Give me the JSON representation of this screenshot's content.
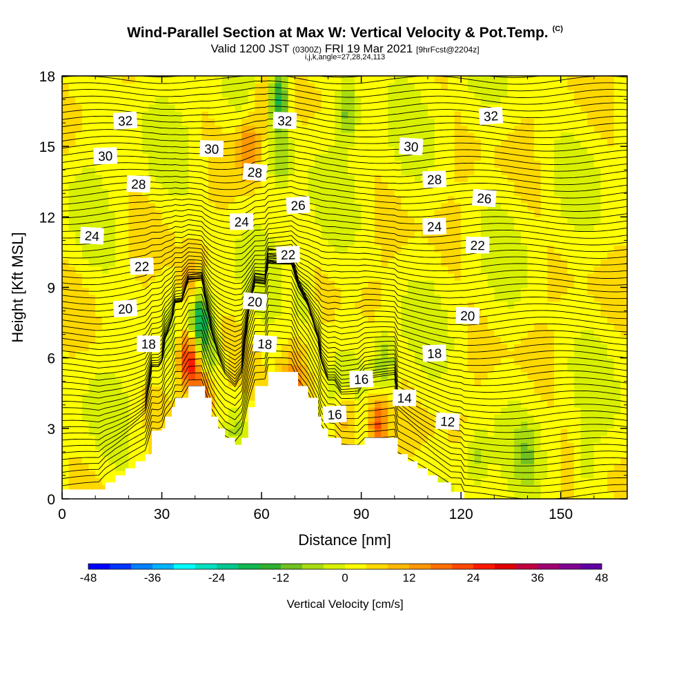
{
  "header": {
    "title": "Wind-Parallel Section at Max W: Vertical Velocity & Pot.Temp.",
    "copyright": "(C)",
    "valid_prefix": "Valid 1200 JST",
    "valid_utc": "(0300Z)",
    "valid_date": "FRI 19 Mar 2021",
    "forecast": "[9hrFcst@2204z]",
    "indices": "i,j,k,angle=27,28,24,113"
  },
  "colorbar": {
    "title": "Vertical Velocity [cm/s]",
    "tick_labels": [
      "-48",
      "-36",
      "-24",
      "-12",
      "0",
      "12",
      "24",
      "36",
      "48"
    ],
    "colors": [
      "#0000ff",
      "#0033ff",
      "#0080ff",
      "#00b3ff",
      "#00ffff",
      "#00e0c0",
      "#00c890",
      "#10b850",
      "#30b030",
      "#70c020",
      "#a8dc10",
      "#d8f000",
      "#ffff00",
      "#ffd800",
      "#ffb800",
      "#ff9800",
      "#ff7000",
      "#ff4800",
      "#ff1800",
      "#e00000",
      "#c00040",
      "#a00070",
      "#800090",
      "#6000a0"
    ]
  },
  "chart_data": {
    "type": "heatmap",
    "title": "Wind-Parallel Section at Max W: Vertical Velocity & Pot.Temp.",
    "xlabel": "Distance [nm]",
    "ylabel": "Height [Kft MSL]",
    "xlim": [
      0,
      170
    ],
    "ylim": [
      0,
      18
    ],
    "x_ticks": [
      "0",
      "30",
      "60",
      "90",
      "120",
      "150"
    ],
    "y_ticks": [
      "0",
      "3",
      "6",
      "9",
      "12",
      "15",
      "18"
    ],
    "color_scale": {
      "variable": "Vertical Velocity",
      "units": "cm/s",
      "min": -48,
      "max": 48,
      "step": 4
    },
    "vertical_velocity_features": [
      {
        "type": "updraft",
        "x": 38,
        "y": 6.0,
        "value": 30
      },
      {
        "type": "updraft",
        "x": 42,
        "y": 4.5,
        "value": 20
      },
      {
        "type": "downdraft",
        "x": 41,
        "y": 7.8,
        "value": -24
      },
      {
        "type": "downdraft",
        "x": 44,
        "y": 6.2,
        "value": -10
      },
      {
        "type": "updraft",
        "x": 39,
        "y": 9.0,
        "value": 14
      },
      {
        "type": "downdraft",
        "x": 65,
        "y": 17.0,
        "value": -22
      },
      {
        "type": "downdraft",
        "x": 66,
        "y": 14.5,
        "value": -12
      },
      {
        "type": "updraft",
        "x": 56,
        "y": 15.0,
        "value": 14
      },
      {
        "type": "updraft",
        "x": 61,
        "y": 17.0,
        "value": 12
      },
      {
        "type": "downdraft",
        "x": 86,
        "y": 16.5,
        "value": -14
      },
      {
        "type": "downdraft",
        "x": 73,
        "y": 8.5,
        "value": -8
      },
      {
        "type": "updraft",
        "x": 70,
        "y": 5.0,
        "value": 14
      },
      {
        "type": "updraft",
        "x": 86,
        "y": 3.5,
        "value": 12
      },
      {
        "type": "updraft",
        "x": 95,
        "y": 3.2,
        "value": 20
      },
      {
        "type": "downdraft",
        "x": 97,
        "y": 5.7,
        "value": -12
      },
      {
        "type": "downdraft",
        "x": 52,
        "y": 3.0,
        "value": -8
      },
      {
        "type": "downdraft",
        "x": 125,
        "y": 1.8,
        "value": -8
      },
      {
        "type": "downdraft",
        "x": 140,
        "y": 2.0,
        "value": -6
      },
      {
        "type": "downdraft",
        "x": 158,
        "y": 1.5,
        "value": -6
      }
    ],
    "potential_temperature_contours": [
      {
        "label": "32",
        "x": 19,
        "y": 16.1
      },
      {
        "label": "32",
        "x": 67,
        "y": 16.1
      },
      {
        "label": "32",
        "x": 129,
        "y": 16.3
      },
      {
        "label": "30",
        "x": 13,
        "y": 14.6
      },
      {
        "label": "30",
        "x": 45,
        "y": 14.9
      },
      {
        "label": "30",
        "x": 105,
        "y": 15.0
      },
      {
        "label": "28",
        "x": 23,
        "y": 13.4
      },
      {
        "label": "28",
        "x": 58,
        "y": 13.9
      },
      {
        "label": "28",
        "x": 112,
        "y": 13.6
      },
      {
        "label": "26",
        "x": 71,
        "y": 12.5
      },
      {
        "label": "26",
        "x": 127,
        "y": 12.8
      },
      {
        "label": "24",
        "x": 9,
        "y": 11.2
      },
      {
        "label": "24",
        "x": 54,
        "y": 11.8
      },
      {
        "label": "24",
        "x": 112,
        "y": 11.6
      },
      {
        "label": "22",
        "x": 24,
        "y": 9.9
      },
      {
        "label": "22",
        "x": 68,
        "y": 10.4
      },
      {
        "label": "22",
        "x": 125,
        "y": 10.8
      },
      {
        "label": "20",
        "x": 19,
        "y": 8.1
      },
      {
        "label": "20",
        "x": 58,
        "y": 8.4
      },
      {
        "label": "20",
        "x": 122,
        "y": 7.8
      },
      {
        "label": "18",
        "x": 26,
        "y": 6.6
      },
      {
        "label": "18",
        "x": 61,
        "y": 6.6
      },
      {
        "label": "18",
        "x": 112,
        "y": 6.2
      },
      {
        "label": "16",
        "x": 90,
        "y": 5.1
      },
      {
        "label": "16",
        "x": 82,
        "y": 3.6
      },
      {
        "label": "14",
        "x": 103,
        "y": 4.3
      },
      {
        "label": "12",
        "x": 116,
        "y": 3.3
      }
    ],
    "terrain_profile": [
      [
        0,
        0.4
      ],
      [
        11,
        0.4
      ],
      [
        13,
        0.7
      ],
      [
        16,
        1.0
      ],
      [
        19,
        1.3
      ],
      [
        22,
        1.6
      ],
      [
        25,
        1.9
      ],
      [
        27,
        2.9
      ],
      [
        29,
        2.9
      ],
      [
        30,
        3.0
      ],
      [
        31,
        3.5
      ],
      [
        33,
        3.9
      ],
      [
        34,
        4.3
      ],
      [
        36,
        4.3
      ],
      [
        38,
        4.8
      ],
      [
        42,
        4.8
      ],
      [
        43,
        4.3
      ],
      [
        45,
        3.5
      ],
      [
        47,
        3.0
      ],
      [
        49,
        2.6
      ],
      [
        52,
        2.3
      ],
      [
        54,
        2.6
      ],
      [
        56,
        3.9
      ],
      [
        58,
        4.8
      ],
      [
        61,
        4.8
      ],
      [
        62,
        5.4
      ],
      [
        67,
        5.4
      ],
      [
        69,
        5.4
      ],
      [
        71,
        4.8
      ],
      [
        74,
        4.3
      ],
      [
        77,
        3.5
      ],
      [
        78,
        3.0
      ],
      [
        80,
        2.6
      ],
      [
        82,
        2.6
      ],
      [
        84,
        2.3
      ],
      [
        89,
        2.3
      ],
      [
        91,
        2.6
      ],
      [
        94,
        2.6
      ],
      [
        96,
        2.6
      ],
      [
        100,
        2.6
      ],
      [
        101,
        1.9
      ],
      [
        104,
        1.6
      ],
      [
        107,
        1.3
      ],
      [
        110,
        1.0
      ],
      [
        113,
        0.7
      ],
      [
        117,
        0.3
      ],
      [
        120,
        0.3
      ],
      [
        121,
        0.0
      ],
      [
        122,
        0.0
      ]
    ]
  }
}
